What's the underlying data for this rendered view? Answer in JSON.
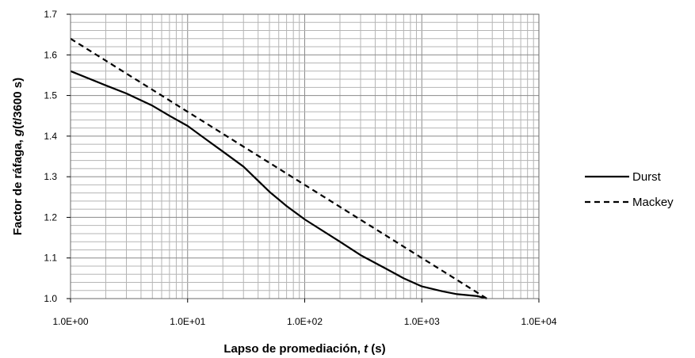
{
  "chart_data": {
    "type": "line",
    "xscale": "log",
    "xlim": [
      1,
      10000
    ],
    "ylim": [
      1.0,
      1.7
    ],
    "grid": true,
    "legend_position": "right",
    "xlabel_parts": [
      {
        "text": "Lapso de promediación, ",
        "italic": false
      },
      {
        "text": "t",
        "italic": true
      },
      {
        "text": " (s)",
        "italic": false
      }
    ],
    "ylabel_parts": [
      {
        "text": "Factor de ráfaga, ",
        "italic": false
      },
      {
        "text": "g",
        "italic": true
      },
      {
        "text": "(",
        "italic": false
      },
      {
        "text": "t",
        "italic": true
      },
      {
        "text": "/3600 s)",
        "italic": false
      }
    ],
    "x_tick_values": [
      1,
      10,
      100,
      1000,
      10000
    ],
    "x_tick_labels": [
      "1.0E+00",
      "1.0E+01",
      "1.0E+02",
      "1.0E+03",
      "1.0E+04"
    ],
    "y_tick_values": [
      1.0,
      1.1,
      1.2,
      1.3,
      1.4,
      1.5,
      1.6,
      1.7
    ],
    "y_tick_labels": [
      "1.0",
      "1.1",
      "1.2",
      "1.3",
      "1.4",
      "1.5",
      "1.6",
      "1.7"
    ],
    "series": [
      {
        "name": "Durst",
        "dash": "solid",
        "color": "#000000",
        "x": [
          1,
          2,
          3,
          5,
          7,
          10,
          15,
          20,
          30,
          50,
          70,
          100,
          200,
          300,
          500,
          700,
          1000,
          1500,
          2000,
          3000,
          3600
        ],
        "y": [
          1.56,
          1.525,
          1.505,
          1.475,
          1.45,
          1.425,
          1.388,
          1.362,
          1.325,
          1.263,
          1.228,
          1.195,
          1.14,
          1.107,
          1.073,
          1.05,
          1.03,
          1.018,
          1.011,
          1.006,
          1.0
        ]
      },
      {
        "name": "Mackey",
        "dash": "dashed",
        "color": "#000000",
        "x": [
          1,
          3600
        ],
        "y": [
          1.64,
          1.0
        ]
      }
    ]
  }
}
